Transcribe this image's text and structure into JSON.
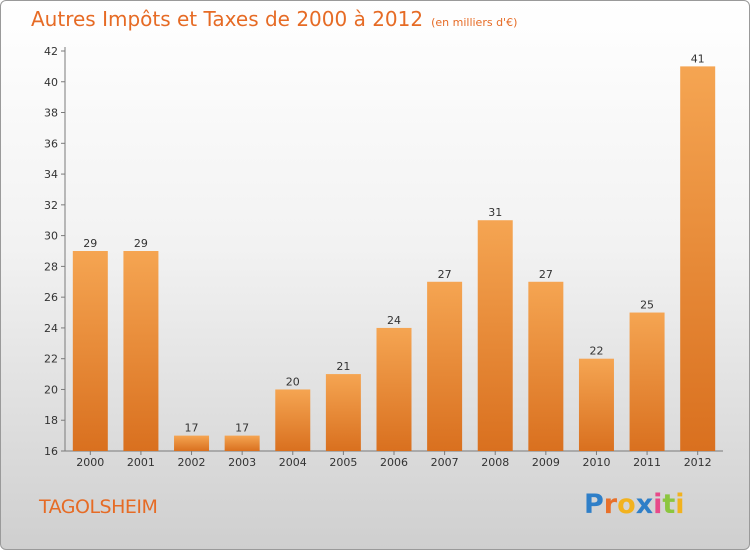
{
  "title": "Autres Impôts et Taxes de 2000 à 2012",
  "subtitle": "(en milliers d'€)",
  "town": "TAGOLSHEIM",
  "brand": {
    "letters": [
      "P",
      "r",
      "o",
      "x",
      "i",
      "t",
      "i"
    ],
    "colors": [
      "#2f7fc8",
      "#e8702a",
      "#f2b21e",
      "#2f7fc8",
      "#e84a8a",
      "#8cc63f",
      "#f2b21e"
    ]
  },
  "chart_data": {
    "type": "bar",
    "title": "Autres Impôts et Taxes de 2000 à 2012",
    "subtitle": "(en milliers d'€)",
    "xlabel": "",
    "ylabel": "",
    "categories": [
      "2000",
      "2001",
      "2002",
      "2003",
      "2004",
      "2005",
      "2006",
      "2007",
      "2008",
      "2009",
      "2010",
      "2011",
      "2012"
    ],
    "values": [
      29,
      29,
      17,
      17,
      20,
      21,
      24,
      27,
      31,
      27,
      22,
      25,
      41
    ],
    "ylim": [
      16,
      42
    ],
    "yticks": [
      16,
      18,
      20,
      22,
      24,
      26,
      28,
      30,
      32,
      34,
      36,
      38,
      40,
      42
    ],
    "grid": false,
    "bar_color_top": "#f5a552",
    "bar_color_bottom": "#d9701f"
  }
}
